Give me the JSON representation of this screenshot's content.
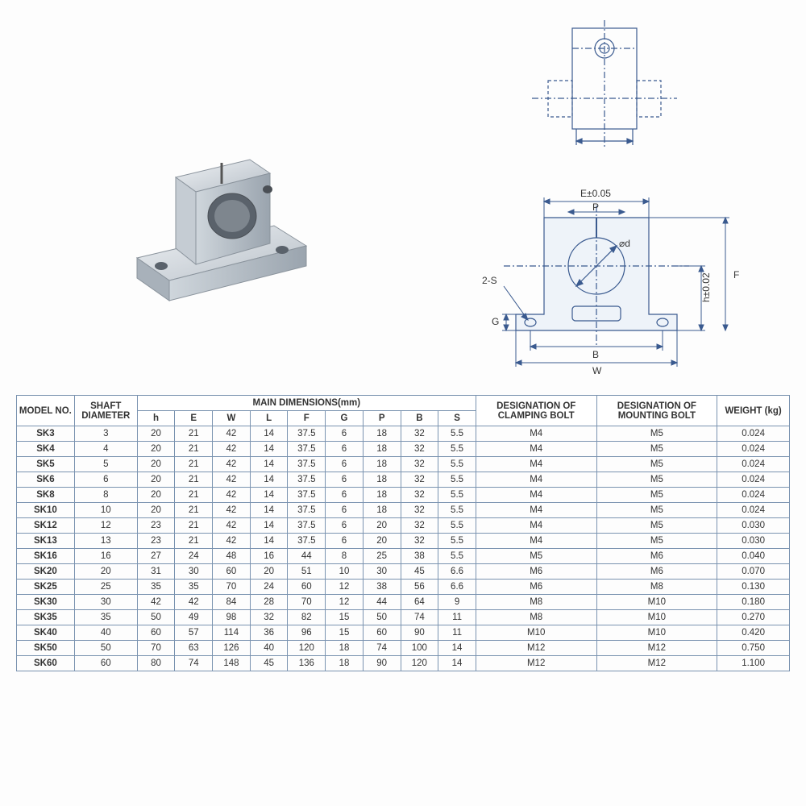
{
  "diagrams": {
    "line_color": "#3a5a8f",
    "fill_color": "#dde5ee",
    "labels": {
      "E": "E±0.05",
      "P": "P",
      "S": "2-S",
      "G": "G",
      "B": "B",
      "W": "W",
      "h": "h±0.02",
      "F": "F",
      "phi": "⌀d"
    }
  },
  "table": {
    "headers": {
      "model": "MODEL NO.",
      "shaft": "SHAFT DIAMETER",
      "main_dims": "MAIN DIMENSIONS(mm)",
      "dims": [
        "h",
        "E",
        "W",
        "L",
        "F",
        "G",
        "P",
        "B",
        "S"
      ],
      "clamp": "DESIGNATION OF CLAMPING BOLT",
      "mount": "DESIGNATION OF MOUNTING BOLT",
      "weight": "WEIGHT (kg)"
    },
    "rows": [
      {
        "model": "SK3",
        "shaft": "3",
        "dims": [
          "20",
          "21",
          "42",
          "14",
          "37.5",
          "6",
          "18",
          "32",
          "5.5"
        ],
        "clamp": "M4",
        "mount": "M5",
        "weight": "0.024"
      },
      {
        "model": "SK4",
        "shaft": "4",
        "dims": [
          "20",
          "21",
          "42",
          "14",
          "37.5",
          "6",
          "18",
          "32",
          "5.5"
        ],
        "clamp": "M4",
        "mount": "M5",
        "weight": "0.024"
      },
      {
        "model": "SK5",
        "shaft": "5",
        "dims": [
          "20",
          "21",
          "42",
          "14",
          "37.5",
          "6",
          "18",
          "32",
          "5.5"
        ],
        "clamp": "M4",
        "mount": "M5",
        "weight": "0.024"
      },
      {
        "model": "SK6",
        "shaft": "6",
        "dims": [
          "20",
          "21",
          "42",
          "14",
          "37.5",
          "6",
          "18",
          "32",
          "5.5"
        ],
        "clamp": "M4",
        "mount": "M5",
        "weight": "0.024"
      },
      {
        "model": "SK8",
        "shaft": "8",
        "dims": [
          "20",
          "21",
          "42",
          "14",
          "37.5",
          "6",
          "18",
          "32",
          "5.5"
        ],
        "clamp": "M4",
        "mount": "M5",
        "weight": "0.024"
      },
      {
        "model": "SK10",
        "shaft": "10",
        "dims": [
          "20",
          "21",
          "42",
          "14",
          "37.5",
          "6",
          "18",
          "32",
          "5.5"
        ],
        "clamp": "M4",
        "mount": "M5",
        "weight": "0.024"
      },
      {
        "model": "SK12",
        "shaft": "12",
        "dims": [
          "23",
          "21",
          "42",
          "14",
          "37.5",
          "6",
          "20",
          "32",
          "5.5"
        ],
        "clamp": "M4",
        "mount": "M5",
        "weight": "0.030"
      },
      {
        "model": "SK13",
        "shaft": "13",
        "dims": [
          "23",
          "21",
          "42",
          "14",
          "37.5",
          "6",
          "20",
          "32",
          "5.5"
        ],
        "clamp": "M4",
        "mount": "M5",
        "weight": "0.030"
      },
      {
        "model": "SK16",
        "shaft": "16",
        "dims": [
          "27",
          "24",
          "48",
          "16",
          "44",
          "8",
          "25",
          "38",
          "5.5"
        ],
        "clamp": "M5",
        "mount": "M6",
        "weight": "0.040"
      },
      {
        "model": "SK20",
        "shaft": "20",
        "dims": [
          "31",
          "30",
          "60",
          "20",
          "51",
          "10",
          "30",
          "45",
          "6.6"
        ],
        "clamp": "M6",
        "mount": "M6",
        "weight": "0.070"
      },
      {
        "model": "SK25",
        "shaft": "25",
        "dims": [
          "35",
          "35",
          "70",
          "24",
          "60",
          "12",
          "38",
          "56",
          "6.6"
        ],
        "clamp": "M6",
        "mount": "M8",
        "weight": "0.130"
      },
      {
        "model": "SK30",
        "shaft": "30",
        "dims": [
          "42",
          "42",
          "84",
          "28",
          "70",
          "12",
          "44",
          "64",
          "9"
        ],
        "clamp": "M8",
        "mount": "M10",
        "weight": "0.180"
      },
      {
        "model": "SK35",
        "shaft": "35",
        "dims": [
          "50",
          "49",
          "98",
          "32",
          "82",
          "15",
          "50",
          "74",
          "11"
        ],
        "clamp": "M8",
        "mount": "M10",
        "weight": "0.270"
      },
      {
        "model": "SK40",
        "shaft": "40",
        "dims": [
          "60",
          "57",
          "114",
          "36",
          "96",
          "15",
          "60",
          "90",
          "11"
        ],
        "clamp": "M10",
        "mount": "M10",
        "weight": "0.420"
      },
      {
        "model": "SK50",
        "shaft": "50",
        "dims": [
          "70",
          "63",
          "126",
          "40",
          "120",
          "18",
          "74",
          "100",
          "14"
        ],
        "clamp": "M12",
        "mount": "M12",
        "weight": "0.750"
      },
      {
        "model": "SK60",
        "shaft": "60",
        "dims": [
          "80",
          "74",
          "148",
          "45",
          "136",
          "18",
          "90",
          "120",
          "14"
        ],
        "clamp": "M12",
        "mount": "M12",
        "weight": "1.100"
      }
    ]
  }
}
